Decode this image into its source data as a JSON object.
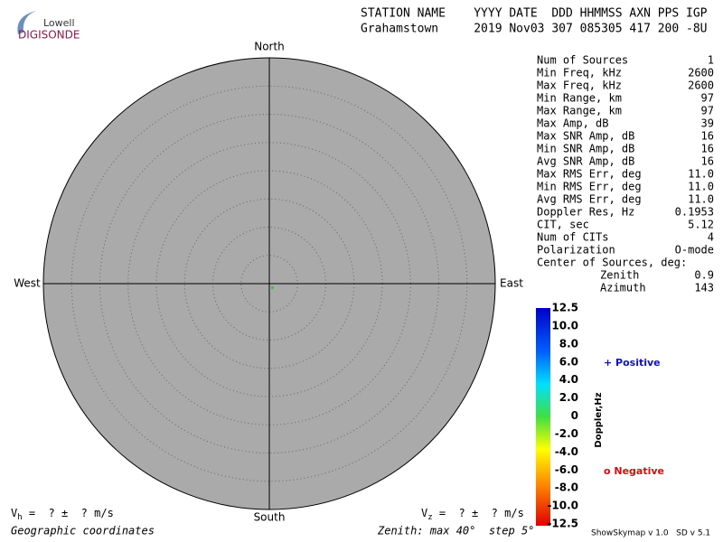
{
  "logo": {
    "top": "Lowell",
    "bottom": "DIGISONDE"
  },
  "header": {
    "labels": "STATION NAME    YYYY DATE  DDD HHMMSS AXN PPS IGP",
    "values": "Grahamstown     2019 Nov03 307 085305 417 200 -8U"
  },
  "compass": {
    "north": "North",
    "south": "South",
    "west": "West",
    "east": "East"
  },
  "stats": [
    {
      "label": "Num of Sources",
      "value": "1"
    },
    {
      "label": "Min Freq, kHz",
      "value": "2600"
    },
    {
      "label": "Max Freq, kHz",
      "value": "2600"
    },
    {
      "label": "Min Range, km",
      "value": "97"
    },
    {
      "label": "Max Range, km",
      "value": "97"
    },
    {
      "label": "Max Amp, dB",
      "value": "39"
    },
    {
      "label": "Max SNR Amp, dB",
      "value": "16"
    },
    {
      "label": "Min SNR Amp, dB",
      "value": "16"
    },
    {
      "label": "Avg SNR Amp, dB",
      "value": "16"
    },
    {
      "label": "Max RMS Err, deg",
      "value": "11.0"
    },
    {
      "label": "Min RMS Err, deg",
      "value": "11.0"
    },
    {
      "label": "Avg RMS Err, deg",
      "value": "11.0"
    },
    {
      "label": "Doppler Res, Hz",
      "value": "0.1953"
    },
    {
      "label": "CIT, sec",
      "value": "5.12"
    },
    {
      "label": "Num of CITs",
      "value": "4"
    },
    {
      "label": "Polarization",
      "value": "O-mode"
    }
  ],
  "center": {
    "title": "Center of Sources, deg:",
    "zenith_label": "Zenith",
    "zenith": 0.9,
    "azimuth_label": "Azimuth",
    "azimuth": 143
  },
  "colorbar": {
    "title": "Doppler,Hz",
    "ticks": [
      "12.5",
      "10.0",
      "8.0",
      "6.0",
      "4.0",
      "2.0",
      "0",
      "-2.0",
      "-4.0",
      "-6.0",
      "-8.0",
      "-10.0",
      "-12.5"
    ]
  },
  "legend": {
    "positive": "+ Positive",
    "negative": "o Negative"
  },
  "velocity": {
    "h_symbol": "V",
    "h_sub": "h",
    "h_text": " =  ? ±  ? m/s",
    "z_symbol": "V",
    "z_sub": "z",
    "z_text": " =  ? ±  ? m/s"
  },
  "footer": {
    "coords": "Geographic coordinates",
    "zenith": "Zenith: max 40°  step 5°",
    "version": "ShowSkymap v 1.0   SD v 5.1"
  }
}
